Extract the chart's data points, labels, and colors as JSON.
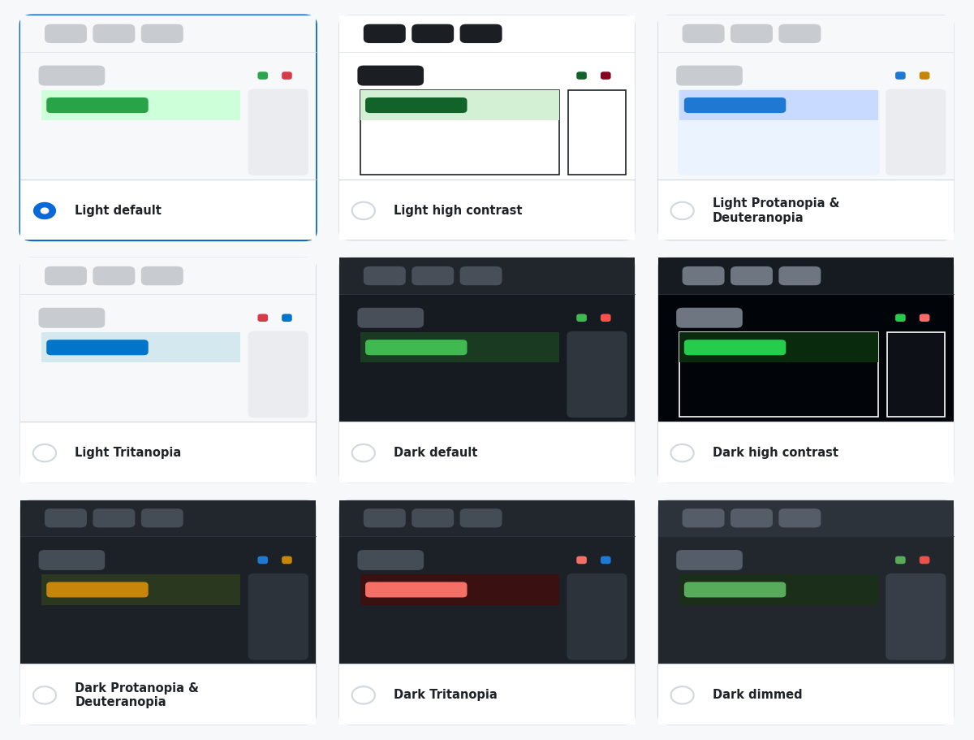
{
  "themes": [
    {
      "name": "Light default",
      "selected": true,
      "card_bg": "#ffffff",
      "label_bg": "#ffffff",
      "preview_bg": "#f6f8fa",
      "header_bg": "#f6f8fa",
      "header_pills": [
        "#c8ccd0",
        "#c8ccd0",
        "#c8ccd0"
      ],
      "subtitle_pill": "#c8ccd0",
      "dots": [
        "#2ea44f",
        "#d73a49"
      ],
      "content_bg": "#f6f8fa",
      "bar_outer_bg": "#cdffd8",
      "bar_inner_color": "#29a347",
      "side_box_bg": "#eaecef",
      "high_contrast_border": false,
      "dark": false
    },
    {
      "name": "Light high contrast",
      "selected": false,
      "card_bg": "#ffffff",
      "label_bg": "#ffffff",
      "preview_bg": "#ffffff",
      "header_bg": "#ffffff",
      "header_pills": [
        "#1b1f24",
        "#1b1f24",
        "#1b1f24"
      ],
      "subtitle_pill": "#1b1f24",
      "dots": [
        "#116329",
        "#82071e"
      ],
      "content_bg": "#ffffff",
      "bar_outer_bg": "#d4f0d4",
      "bar_inner_color": "#116329",
      "side_box_bg": "#ffffff",
      "high_contrast_border": true,
      "hc_border_color": "#1b1f24",
      "dark": false
    },
    {
      "name": "Light Protanopia &\nDeuteranopia",
      "selected": false,
      "card_bg": "#ffffff",
      "label_bg": "#ffffff",
      "preview_bg": "#f6f8fa",
      "header_bg": "#f6f8fa",
      "header_pills": [
        "#c8ccd0",
        "#c8ccd0",
        "#c8ccd0"
      ],
      "subtitle_pill": "#c8ccd0",
      "dots": [
        "#1f78d1",
        "#c6860a"
      ],
      "content_bg": "#eaf3ff",
      "bar_outer_bg": "#c8daff",
      "bar_inner_color": "#1f78d1",
      "side_box_bg": "#eaecef",
      "high_contrast_border": false,
      "dark": false
    },
    {
      "name": "Light Tritanopia",
      "selected": false,
      "card_bg": "#ffffff",
      "label_bg": "#ffffff",
      "preview_bg": "#f6f8fa",
      "header_bg": "#f6f8fa",
      "header_pills": [
        "#c8ccd0",
        "#c8ccd0",
        "#c8ccd0"
      ],
      "subtitle_pill": "#c8ccd0",
      "dots": [
        "#d73a49",
        "#0075ca"
      ],
      "content_bg": "#f6f8fa",
      "bar_outer_bg": "#d4e8f0",
      "bar_inner_color": "#0075ca",
      "side_box_bg": "#eaecef",
      "high_contrast_border": false,
      "dark": false
    },
    {
      "name": "Dark default",
      "selected": false,
      "card_bg": "#161b22",
      "label_bg": "#ffffff",
      "preview_bg": "#161b22",
      "header_bg": "#21262d",
      "header_pills": [
        "#484f58",
        "#484f58",
        "#484f58"
      ],
      "subtitle_pill": "#484f58",
      "dots": [
        "#3fb950",
        "#f85149"
      ],
      "content_bg": "#161b22",
      "bar_outer_bg": "#1a3a22",
      "bar_inner_color": "#3fb950",
      "side_box_bg": "#30363d",
      "high_contrast_border": false,
      "dark": true
    },
    {
      "name": "Dark high contrast",
      "selected": false,
      "card_bg": "#010409",
      "label_bg": "#ffffff",
      "preview_bg": "#010409",
      "header_bg": "#161b22",
      "header_pills": [
        "#6e7681",
        "#6e7681",
        "#6e7681"
      ],
      "subtitle_pill": "#6e7681",
      "dots": [
        "#26cd4d",
        "#ff6a69"
      ],
      "content_bg": "#010409",
      "bar_outer_bg": "#0a2a0e",
      "bar_inner_color": "#26cd4d",
      "side_box_bg": "#0d1117",
      "high_contrast_border": true,
      "hc_border_color": "#ffffff",
      "dark": true
    },
    {
      "name": "Dark Protanopia &\nDeuteranopia",
      "selected": false,
      "card_bg": "#1c2128",
      "label_bg": "#ffffff",
      "preview_bg": "#1c2128",
      "header_bg": "#22272e",
      "header_pills": [
        "#444c56",
        "#444c56",
        "#444c56"
      ],
      "subtitle_pill": "#444c56",
      "dots": [
        "#1f78d1",
        "#c6860a"
      ],
      "content_bg": "#1c2128",
      "bar_outer_bg": "#2b3820",
      "bar_inner_color": "#c6860a",
      "side_box_bg": "#2d333b",
      "high_contrast_border": false,
      "dark": true
    },
    {
      "name": "Dark Tritanopia",
      "selected": false,
      "card_bg": "#1c2128",
      "label_bg": "#ffffff",
      "preview_bg": "#1c2128",
      "header_bg": "#22272e",
      "header_pills": [
        "#444c56",
        "#444c56",
        "#444c56"
      ],
      "subtitle_pill": "#444c56",
      "dots": [
        "#f47067",
        "#1f78d1"
      ],
      "content_bg": "#1c2128",
      "bar_outer_bg": "#3a1010",
      "bar_inner_color": "#f47067",
      "side_box_bg": "#2d333b",
      "high_contrast_border": false,
      "dark": true
    },
    {
      "name": "Dark dimmed",
      "selected": false,
      "card_bg": "#22272e",
      "label_bg": "#ffffff",
      "preview_bg": "#22272e",
      "header_bg": "#2d333b",
      "header_pills": [
        "#545d68",
        "#545d68",
        "#545d68"
      ],
      "subtitle_pill": "#545d68",
      "dots": [
        "#57ab5a",
        "#e5534b"
      ],
      "content_bg": "#22272e",
      "bar_outer_bg": "#1a2e1a",
      "bar_inner_color": "#57ab5a",
      "side_box_bg": "#373e47",
      "high_contrast_border": false,
      "dark": true
    }
  ],
  "grid_cols": 3,
  "grid_rows": 3,
  "outer_bg": "#f6f8fa",
  "card_border_color": "#d0d7de",
  "selected_border_color": "#0969da",
  "radio_selected_color": "#0969da",
  "radio_unselected_color": "#d0d7de",
  "label_fontsize": 14,
  "label_color": "#1f2328"
}
